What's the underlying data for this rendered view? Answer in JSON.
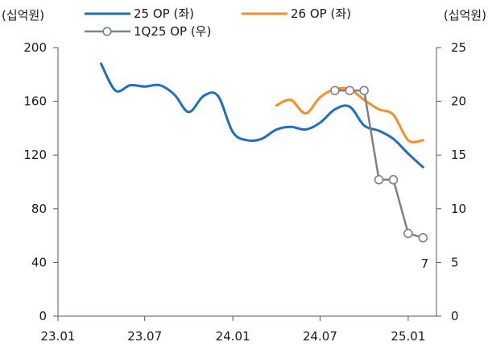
{
  "chart_data": {
    "type": "line",
    "y_left_unit": "(십억원)",
    "y_right_unit": "(십억원)",
    "y_left": {
      "min": 0,
      "max": 200,
      "ticks": [
        0,
        40,
        80,
        120,
        160,
        200
      ]
    },
    "y_right": {
      "min": 0,
      "max": 25,
      "ticks": [
        0,
        5,
        10,
        15,
        20,
        25
      ]
    },
    "x_axis": {
      "start": "2023-01",
      "end": "2025-03",
      "ticks": [
        {
          "date": "2023-01",
          "label": "23.01"
        },
        {
          "date": "2023-07",
          "label": "23.07"
        },
        {
          "date": "2024-01",
          "label": "24.01"
        },
        {
          "date": "2024-07",
          "label": "24.07"
        },
        {
          "date": "2025-01",
          "label": "25.01"
        }
      ]
    },
    "series": [
      {
        "name": "25 OP (좌)",
        "axis": "left",
        "color": "#1f6fbf",
        "marker": false,
        "points": [
          [
            "2023-04-01",
            188
          ],
          [
            "2023-05-01",
            168
          ],
          [
            "2023-06-01",
            172
          ],
          [
            "2023-07-01",
            171
          ],
          [
            "2023-08-01",
            172
          ],
          [
            "2023-09-01",
            165
          ],
          [
            "2023-10-01",
            152
          ],
          [
            "2023-11-01",
            164
          ],
          [
            "2023-12-01",
            164
          ],
          [
            "2024-01-01",
            137
          ],
          [
            "2024-02-01",
            131
          ],
          [
            "2024-03-01",
            132
          ],
          [
            "2024-04-01",
            139
          ],
          [
            "2024-05-01",
            141
          ],
          [
            "2024-06-01",
            139
          ],
          [
            "2024-07-01",
            144
          ],
          [
            "2024-08-01",
            154
          ],
          [
            "2024-09-01",
            156
          ],
          [
            "2024-10-01",
            142
          ],
          [
            "2024-11-01",
            138
          ],
          [
            "2024-12-01",
            132
          ],
          [
            "2025-01-01",
            121
          ],
          [
            "2025-02-01",
            111
          ]
        ]
      },
      {
        "name": "26 OP (좌)",
        "axis": "left",
        "color": "#f28e2b",
        "marker": false,
        "points": [
          [
            "2024-04-01",
            157
          ],
          [
            "2024-05-01",
            161
          ],
          [
            "2024-06-01",
            151
          ],
          [
            "2024-07-01",
            163
          ],
          [
            "2024-08-01",
            169
          ],
          [
            "2024-09-01",
            169
          ],
          [
            "2024-10-01",
            161
          ],
          [
            "2024-11-01",
            154
          ],
          [
            "2024-12-01",
            150
          ],
          [
            "2025-01-01",
            131
          ],
          [
            "2025-02-01",
            131
          ]
        ]
      },
      {
        "name": "1Q25 OP (우)",
        "axis": "right",
        "color": "#808080",
        "marker": true,
        "points": [
          [
            "2024-08-01",
            21.0
          ],
          [
            "2024-09-01",
            21.0
          ],
          [
            "2024-10-01",
            21.0
          ],
          [
            "2024-11-01",
            12.7
          ],
          [
            "2024-12-01",
            12.7
          ],
          [
            "2025-01-01",
            7.7
          ],
          [
            "2025-02-01",
            7.3
          ]
        ]
      }
    ],
    "annotations": [
      {
        "text": "7",
        "series": "1Q25 OP (우)",
        "position": "below-last-point"
      }
    ],
    "legend": {
      "placement": "top"
    },
    "grid": false
  }
}
